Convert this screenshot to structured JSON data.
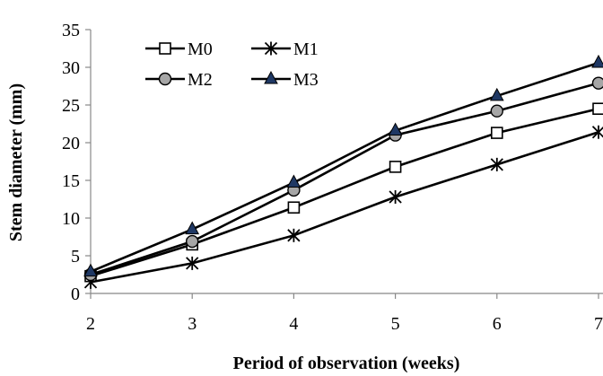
{
  "chart_data": {
    "type": "line",
    "xlabel": "Period of observation (weeks)",
    "ylabel": "Stem diameter (mm)",
    "x": [
      2,
      3,
      4,
      5,
      6,
      7
    ],
    "x_tick_labels": [
      "2",
      "3",
      "4",
      "5",
      "6",
      "7"
    ],
    "xlim": [
      2,
      7
    ],
    "ylim": [
      0,
      35
    ],
    "y_ticks": [
      0,
      5,
      10,
      15,
      20,
      25,
      30,
      35
    ],
    "y_tick_labels": [
      "0",
      "5",
      "10",
      "15",
      "20",
      "25",
      "30",
      "35"
    ],
    "grid": false,
    "legend_position": "top-left",
    "series": [
      {
        "name": "M0",
        "marker": "square-open",
        "color": "#000000",
        "values": [
          2.3,
          6.5,
          11.4,
          16.8,
          21.3,
          24.5
        ]
      },
      {
        "name": "M1",
        "marker": "asterisk",
        "color": "#000000",
        "values": [
          1.5,
          4.0,
          7.7,
          12.8,
          17.1,
          21.4
        ]
      },
      {
        "name": "M2",
        "marker": "circle-gray",
        "color": "#000000",
        "marker_fill": "#a6a6a6",
        "values": [
          2.5,
          6.9,
          13.7,
          21.0,
          24.2,
          27.9
        ]
      },
      {
        "name": "M3",
        "marker": "triangle-filled",
        "color": "#000000",
        "marker_fill": "#1f3864",
        "values": [
          2.9,
          8.5,
          14.7,
          21.6,
          26.2,
          30.6
        ]
      }
    ]
  }
}
